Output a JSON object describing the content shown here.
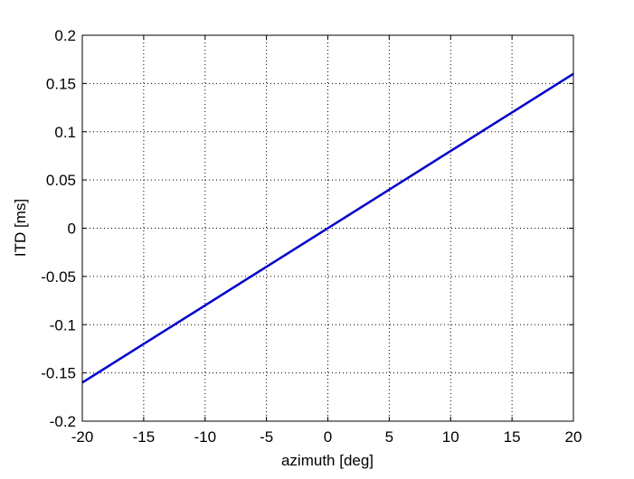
{
  "chart_data": {
    "type": "line",
    "title": "",
    "xlabel": "azimuth [deg]",
    "ylabel": "ITD [ms]",
    "xlim": [
      -20,
      20
    ],
    "ylim": [
      -0.2,
      0.2
    ],
    "x_ticks": [
      -20,
      -15,
      -10,
      -5,
      0,
      5,
      10,
      15,
      20
    ],
    "x_tick_labels": [
      "-20",
      "-15",
      "-10",
      "-5",
      "0",
      "5",
      "10",
      "15",
      "20"
    ],
    "y_ticks": [
      -0.2,
      -0.15,
      -0.1,
      -0.05,
      0,
      0.05,
      0.1,
      0.15,
      0.2
    ],
    "y_tick_labels": [
      "-0.2",
      "-0.15",
      "-0.1",
      "-0.05",
      "0",
      "0.05",
      "0.1",
      "0.15",
      "0.2"
    ],
    "grid": true,
    "grid_style": "dotted",
    "legend": "none",
    "series": [
      {
        "color": "#0000cc",
        "x": [
          -20,
          -15,
          -10,
          -5,
          0,
          5,
          10,
          15,
          20
        ],
        "y": [
          -0.16,
          -0.12,
          -0.08,
          -0.04,
          0,
          0.04,
          0.08,
          0.12,
          0.16
        ]
      }
    ]
  }
}
